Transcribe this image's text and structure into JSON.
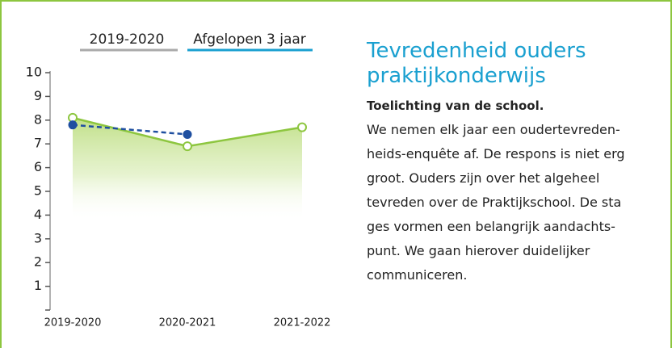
{
  "tabs": [
    "2019-2020",
    "Afgelopen 3 jaar"
  ],
  "chart_data": {
    "type": "line",
    "categories": [
      "2019-2020",
      "2020-2021",
      "2021-2022"
    ],
    "series": [
      {
        "color": "#8dc63f",
        "values": [
          8.1,
          6.9,
          7.7
        ],
        "area": true,
        "marker": "open"
      },
      {
        "color": "#1f4fa0",
        "values": [
          7.8,
          7.4,
          null
        ],
        "dashed": true,
        "marker": "filled"
      }
    ],
    "ylim": [
      0,
      10
    ],
    "yticks": [
      1,
      2,
      3,
      4,
      5,
      6,
      7,
      8,
      9,
      10
    ]
  },
  "panel": {
    "title": "Tevredenheid ouders praktijkonderwijs",
    "subtitle": "Toelichting van de school.",
    "lines": [
      "We nemen elk jaar een oudertevreden-",
      "heids-enquête af. De respons is niet erg",
      "groot. Ouders zijn over het algeheel",
      "tevreden over de Praktijkschool. De sta",
      "ges vormen een belangrijk aandachts-",
      "punt. We gaan hierover duidelijker",
      "communiceren."
    ]
  }
}
